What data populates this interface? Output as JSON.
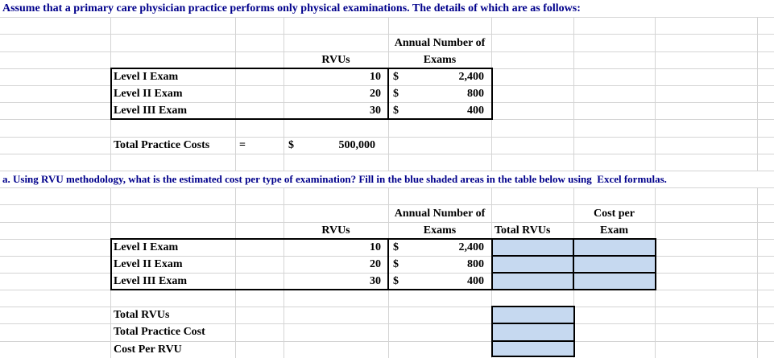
{
  "colors": {
    "heading_text": "#00008B",
    "body_text": "#000000",
    "shaded_cell_fill": "#C6D9F0",
    "gridline": "#d4d4d4",
    "table_border": "#000000"
  },
  "intro": {
    "text": "Assume that a primary care physician practice performs only physical examinations. The details of which are as follows:"
  },
  "question_a": {
    "text": "a. Using RVU methodology, what is the estimated cost per type of examination? Fill in the blue shaded areas in the table below using  Excel formulas."
  },
  "table1": {
    "headers": {
      "rvus": "RVUs",
      "annual_line1": "Annual Number of",
      "annual_line2": "Exams"
    },
    "rows": [
      {
        "label": "Level I Exam",
        "rvus": "10",
        "currency": "$",
        "exams": "2,400"
      },
      {
        "label": "Level II Exam",
        "rvus": "20",
        "currency": "$",
        "exams": "800"
      },
      {
        "label": "Level III Exam",
        "rvus": "30",
        "currency": "$",
        "exams": "400"
      }
    ],
    "total": {
      "label": "Total Practice Costs",
      "equals": "=",
      "currency": "$",
      "amount": "500,000"
    }
  },
  "table2": {
    "headers": {
      "rvus": "RVUs",
      "annual_line1": "Annual Number of",
      "annual_line2": "Exams",
      "total_rvus": "Total RVUs",
      "cost_per_line1": "Cost per",
      "cost_per_line2": "Exam"
    },
    "rows": [
      {
        "label": "Level I Exam",
        "rvus": "10",
        "currency": "$",
        "exams": "2,400",
        "total_rvus": "",
        "cost_per_exam": ""
      },
      {
        "label": "Level II Exam",
        "rvus": "20",
        "currency": "$",
        "exams": "800",
        "total_rvus": "",
        "cost_per_exam": ""
      },
      {
        "label": "Level III Exam",
        "rvus": "30",
        "currency": "$",
        "exams": "400",
        "total_rvus": "",
        "cost_per_exam": ""
      }
    ],
    "summary": [
      {
        "label": "Total RVUs",
        "value": ""
      },
      {
        "label": "Total Practice Cost",
        "value": ""
      },
      {
        "label": "Cost Per RVU",
        "value": ""
      }
    ]
  }
}
